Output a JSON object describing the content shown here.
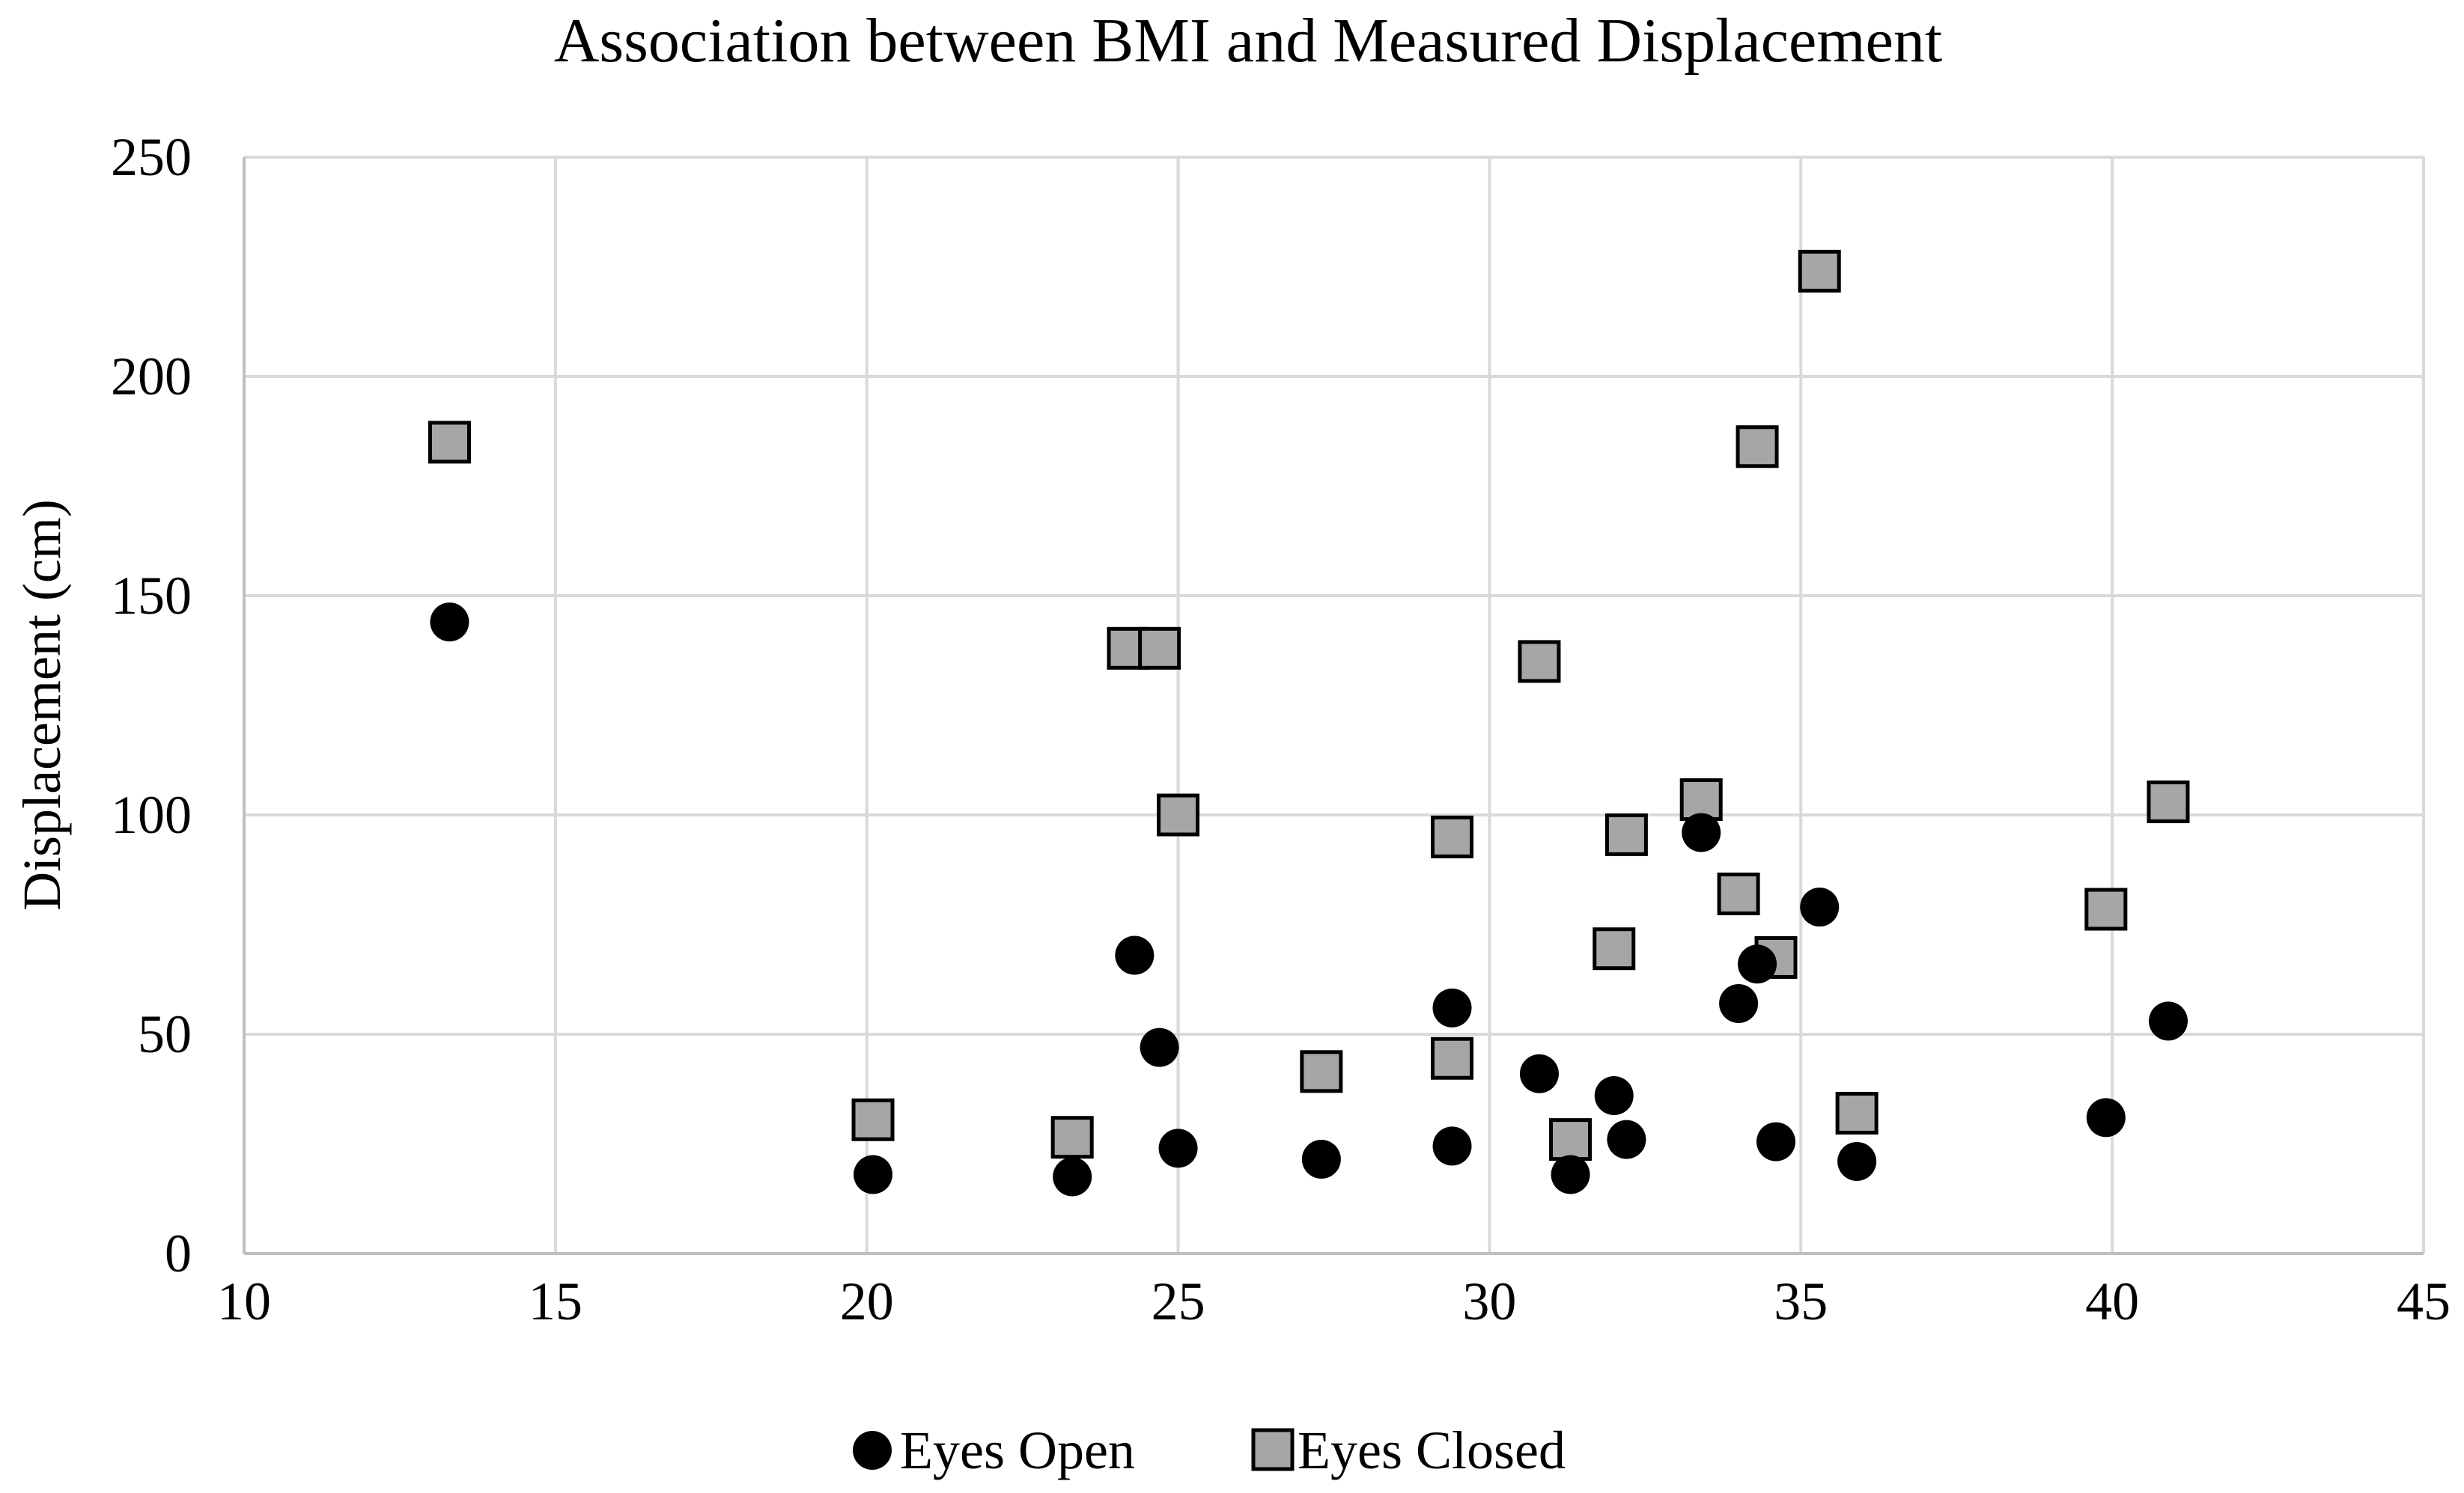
{
  "chart_data": {
    "type": "scatter",
    "title": "Association  between BMI and Measured Displacement",
    "xlabel": "",
    "ylabel": "Displacement (cm)",
    "xlim": [
      10,
      45
    ],
    "ylim": [
      0,
      250
    ],
    "xticks": [
      10,
      15,
      20,
      25,
      30,
      35,
      40,
      45
    ],
    "yticks": [
      0,
      50,
      100,
      150,
      200,
      250
    ],
    "grid": true,
    "legend_position": "bottom",
    "colors": {
      "grid": "#d9d9d9",
      "axis": "#bfbfbf",
      "eyes_open_fill": "#000000",
      "eyes_closed_fill": "#a6a6a6",
      "eyes_closed_stroke": "#000000"
    },
    "series": [
      {
        "name": "Eyes Open",
        "marker": "circle",
        "points": [
          [
            13.3,
            144
          ],
          [
            20.1,
            18
          ],
          [
            23.3,
            17.5
          ],
          [
            24.3,
            68
          ],
          [
            24.7,
            47
          ],
          [
            25.0,
            24
          ],
          [
            27.3,
            21.5
          ],
          [
            29.4,
            24.5
          ],
          [
            29.4,
            56
          ],
          [
            30.8,
            41
          ],
          [
            31.3,
            18
          ],
          [
            32.0,
            36
          ],
          [
            32.2,
            26
          ],
          [
            33.4,
            96
          ],
          [
            34.0,
            57
          ],
          [
            34.3,
            66
          ],
          [
            34.6,
            25.5
          ],
          [
            35.3,
            79
          ],
          [
            35.9,
            21
          ],
          [
            39.9,
            31
          ],
          [
            40.9,
            53
          ]
        ]
      },
      {
        "name": "Eyes Closed",
        "marker": "square",
        "points": [
          [
            13.3,
            185
          ],
          [
            20.1,
            30.5
          ],
          [
            23.3,
            26.5
          ],
          [
            24.2,
            138
          ],
          [
            24.7,
            138
          ],
          [
            25.0,
            100
          ],
          [
            27.3,
            41.5
          ],
          [
            29.4,
            44.5
          ],
          [
            29.4,
            95
          ],
          [
            30.8,
            135
          ],
          [
            31.3,
            26
          ],
          [
            32.0,
            69.5
          ],
          [
            32.2,
            95.5
          ],
          [
            33.4,
            103.5
          ],
          [
            34.0,
            82
          ],
          [
            34.3,
            184
          ],
          [
            34.6,
            67.5
          ],
          [
            35.3,
            224
          ],
          [
            35.9,
            32
          ],
          [
            39.9,
            78.5
          ],
          [
            40.9,
            103
          ]
        ]
      }
    ]
  }
}
